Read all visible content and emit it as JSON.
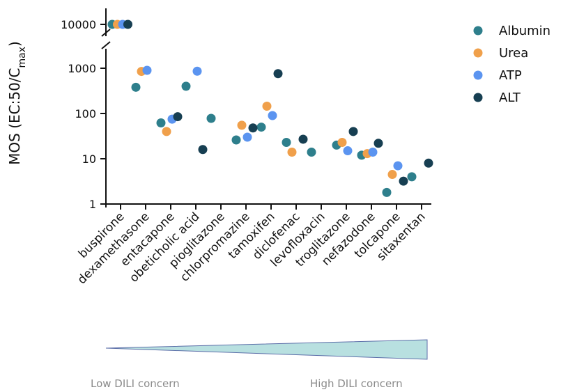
{
  "chart_data": {
    "type": "scatter",
    "ylabel_main": "MOS (EC:50/C",
    "ylabel_sub": "max",
    "ylabel_close": ")",
    "y_scale": "log",
    "y_ticks": [
      {
        "value": 1,
        "label": "1"
      },
      {
        "value": 10,
        "label": "10"
      },
      {
        "value": 100,
        "label": "100"
      },
      {
        "value": 1000,
        "label": "1000"
      },
      {
        "value": 10000,
        "label": "10000"
      }
    ],
    "axis_break": "between 1000 and 10000",
    "categories": [
      "buspirone",
      "dexamethasone",
      "entacapone",
      "obeticholic acid",
      "pioglitazone",
      "chlorpromazine",
      "tamoxifen",
      "diclofenac",
      "levofloxacin",
      "troglitazone",
      "nefazodone",
      "tolcapone",
      "sitaxentan"
    ],
    "series": [
      {
        "name": "Albumin",
        "color": "#2e7f8c",
        "values": [
          10000,
          380,
          62,
          400,
          78,
          26,
          50,
          23,
          14,
          20,
          12,
          1.8,
          4
        ]
      },
      {
        "name": "Urea",
        "color": "#f0a04b",
        "values": [
          10000,
          850,
          40,
          null,
          null,
          55,
          145,
          14,
          null,
          23,
          13,
          4.5,
          null
        ]
      },
      {
        "name": "ATP",
        "color": "#5b94f0",
        "values": [
          10000,
          900,
          75,
          860,
          null,
          30,
          90,
          null,
          null,
          15,
          14,
          7,
          null
        ]
      },
      {
        "name": "ALT",
        "color": "#173f52",
        "values": [
          10000,
          null,
          85,
          16,
          null,
          48,
          760,
          27,
          null,
          40,
          22,
          3.2,
          8
        ]
      }
    ],
    "legend_position": "top-right",
    "grid": false
  },
  "dili_scale": {
    "low_label": "Low DILI concern",
    "high_label": "High DILI concern",
    "fill_color": "#b8e0e0",
    "stroke_color": "#5b6ea8"
  }
}
